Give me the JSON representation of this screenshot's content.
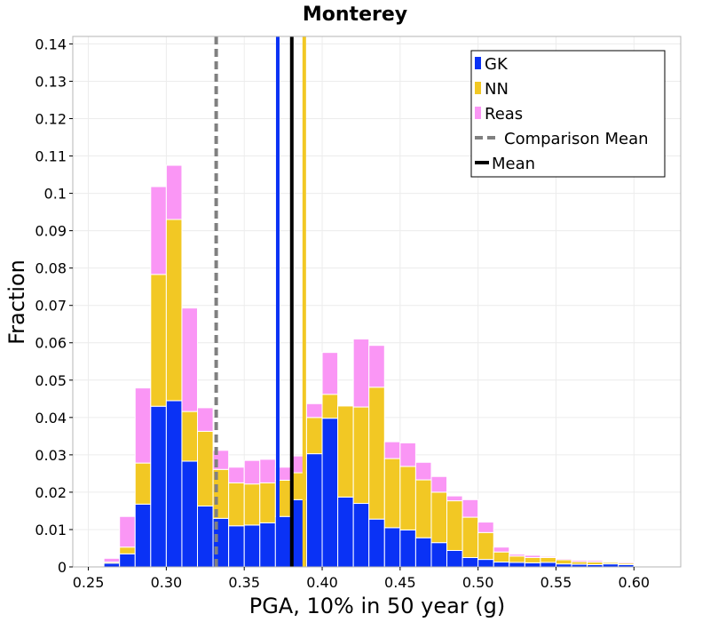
{
  "chart_data": {
    "type": "bar",
    "stacked": true,
    "title": "Monterey",
    "xlabel": "PGA, 10% in 50 year (g)",
    "ylabel": "Fraction",
    "xlim": [
      0.24,
      0.63
    ],
    "ylim": [
      0,
      0.142
    ],
    "grid": true,
    "legend_position": "top-right",
    "bin_width": 0.01,
    "x_ticks": [
      "0.25",
      "0.30",
      "0.35",
      "0.40",
      "0.45",
      "0.50",
      "0.55",
      "0.60"
    ],
    "x_tick_values": [
      0.25,
      0.3,
      0.35,
      0.4,
      0.45,
      0.5,
      0.55,
      0.6
    ],
    "y_ticks": [
      "0",
      "0.01",
      "0.02",
      "0.03",
      "0.04",
      "0.05",
      "0.06",
      "0.07",
      "0.08",
      "0.09",
      "0.1",
      "0.11",
      "0.12",
      "0.13",
      "0.14"
    ],
    "y_tick_values": [
      0,
      0.01,
      0.02,
      0.03,
      0.04,
      0.05,
      0.06,
      0.07,
      0.08,
      0.09,
      0.1,
      0.11,
      0.12,
      0.13,
      0.14
    ],
    "bin_centers": [
      0.255,
      0.265,
      0.275,
      0.285,
      0.295,
      0.305,
      0.315,
      0.325,
      0.335,
      0.345,
      0.355,
      0.365,
      0.375,
      0.385,
      0.395,
      0.405,
      0.415,
      0.425,
      0.435,
      0.445,
      0.455,
      0.465,
      0.475,
      0.485,
      0.495,
      0.505,
      0.515,
      0.525,
      0.535,
      0.545,
      0.555,
      0.565,
      0.575,
      0.585,
      0.595,
      0.605,
      0.615
    ],
    "series": [
      {
        "name": "GK",
        "color": "#0a32f5",
        "values": [
          0.0002,
          0.001,
          0.0035,
          0.0168,
          0.043,
          0.0445,
          0.0283,
          0.0163,
          0.013,
          0.011,
          0.0112,
          0.0118,
          0.0135,
          0.018,
          0.0303,
          0.0398,
          0.0187,
          0.017,
          0.0128,
          0.0105,
          0.0099,
          0.0078,
          0.0065,
          0.0044,
          0.0025,
          0.002,
          0.0013,
          0.0012,
          0.0011,
          0.0012,
          0.0008,
          0.0007,
          0.0006,
          0.0008,
          0.0006,
          0.0002,
          0.0001
        ]
      },
      {
        "name": "NN",
        "color": "#f2c824",
        "values": [
          0.0,
          0.0003,
          0.0018,
          0.011,
          0.0353,
          0.0485,
          0.0133,
          0.02,
          0.0131,
          0.0115,
          0.011,
          0.0107,
          0.0097,
          0.0072,
          0.0097,
          0.0064,
          0.0244,
          0.0258,
          0.0353,
          0.0185,
          0.017,
          0.0155,
          0.0135,
          0.0133,
          0.0108,
          0.0072,
          0.0027,
          0.0017,
          0.0014,
          0.0013,
          0.0011,
          0.0007,
          0.0007,
          0.0004,
          0.0004,
          0.0001,
          0.0001
        ]
      },
      {
        "name": "Reas",
        "color": "#fa96f5",
        "values": [
          0.0001,
          0.001,
          0.0082,
          0.0201,
          0.0235,
          0.0145,
          0.0277,
          0.0063,
          0.0051,
          0.0042,
          0.0063,
          0.0063,
          0.0035,
          0.0045,
          0.0037,
          0.0112,
          0.0002,
          0.0182,
          0.0112,
          0.0045,
          0.0063,
          0.0047,
          0.0042,
          0.0013,
          0.0047,
          0.0028,
          0.0013,
          0.0005,
          0.0006,
          0.0003,
          0.0003,
          0.0004,
          0.0004,
          0.0002,
          0.0003,
          0.0002,
          0.0001
        ]
      }
    ],
    "reference_lines": [
      {
        "name": "Comparison Mean",
        "x": 0.332,
        "color": "#808080",
        "style": "dashed"
      },
      {
        "name": "GK mean",
        "x": 0.3715,
        "color": "#0a32f5",
        "style": "solid"
      },
      {
        "name": "Mean",
        "x": 0.3805,
        "color": "#000000",
        "style": "solid"
      },
      {
        "name": "NN mean",
        "x": 0.3885,
        "color": "#f2c824",
        "style": "solid"
      }
    ],
    "legend": [
      {
        "label": "GK",
        "kind": "patch",
        "color": "#0a32f5"
      },
      {
        "label": "NN",
        "kind": "patch",
        "color": "#f2c824"
      },
      {
        "label": "Reas",
        "kind": "patch",
        "color": "#fa96f5"
      },
      {
        "label": "Comparison Mean",
        "kind": "dashed-line",
        "color": "#808080"
      },
      {
        "label": "Mean",
        "kind": "solid-line",
        "color": "#000000"
      }
    ]
  }
}
